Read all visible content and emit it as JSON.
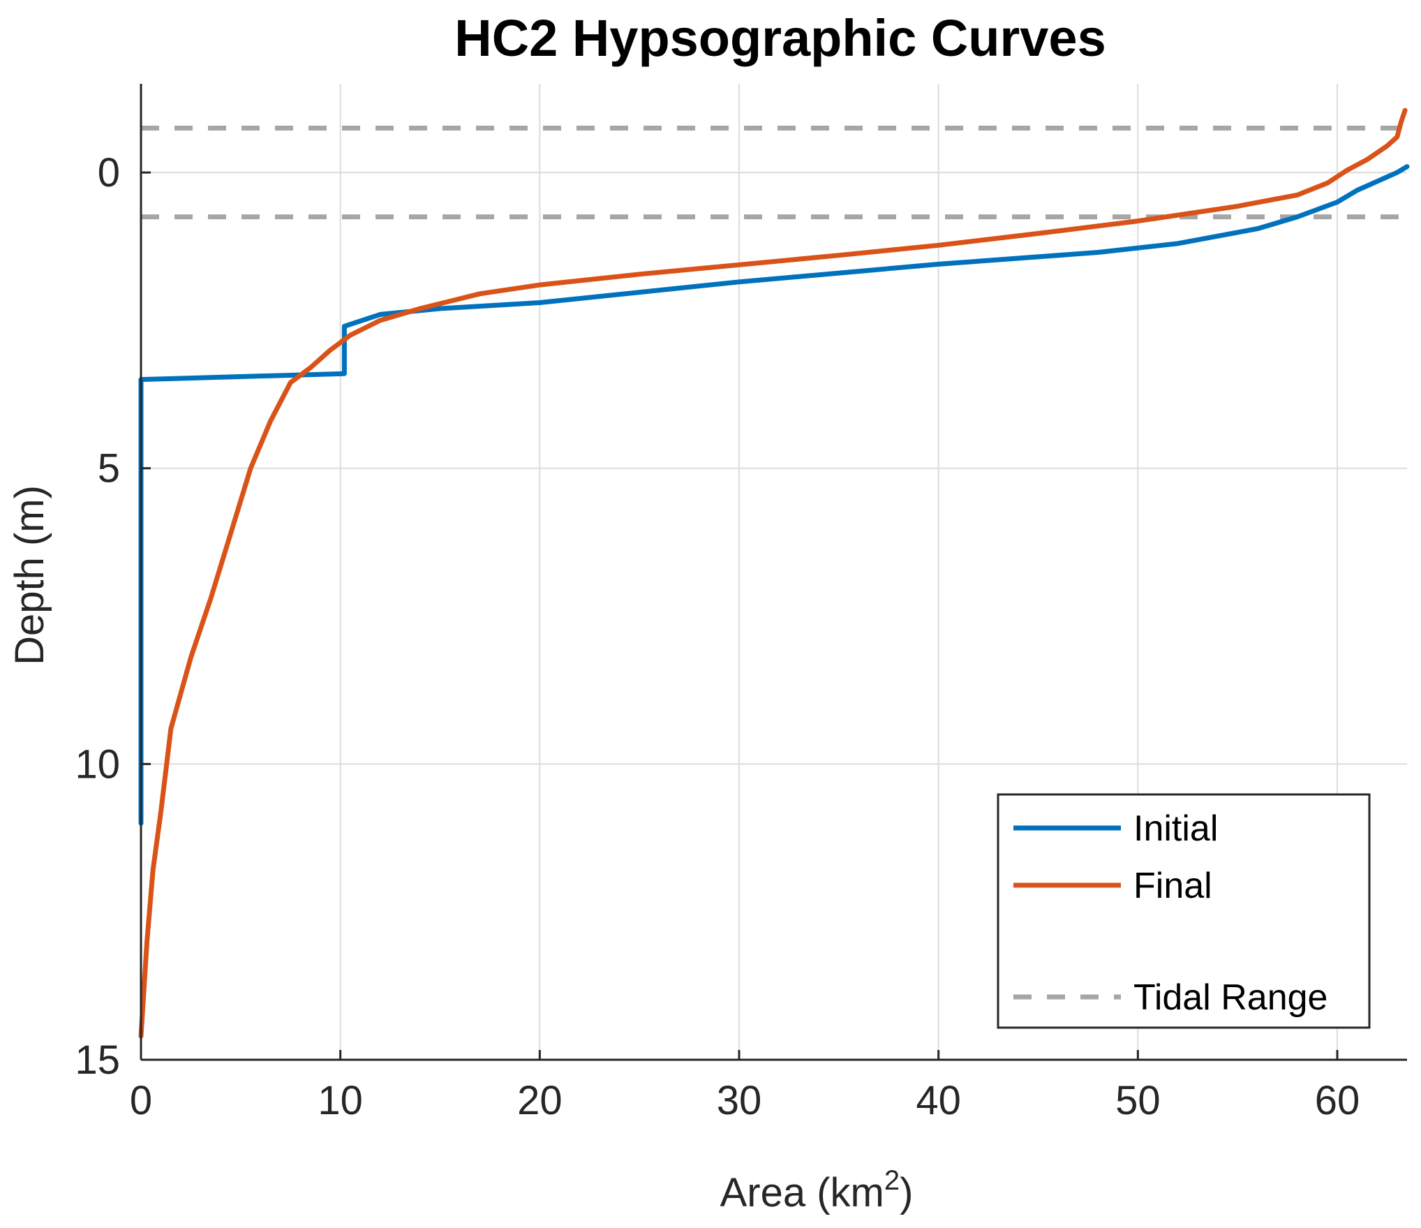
{
  "chart_data": {
    "type": "line",
    "title": "HC2 Hypsographic Curves",
    "xlabel": "Area (km",
    "xlabel_superscript": "2",
    "xlabel_suffix": ")",
    "ylabel": "Depth (m)",
    "xlim": [
      0,
      63.5
    ],
    "ylim": [
      -1.5,
      15
    ],
    "y_reversed": true,
    "grid": true,
    "xticks": [
      0,
      10,
      20,
      30,
      40,
      50,
      60
    ],
    "xtick_labels": [
      "0",
      "10",
      "20",
      "30",
      "40",
      "50",
      "60"
    ],
    "yticks": [
      0,
      5,
      10,
      15
    ],
    "ytick_labels": [
      "0",
      "5",
      "10",
      "15"
    ],
    "legend_position": "bottom-right",
    "series": [
      {
        "name": "Initial",
        "color": "#0072BD",
        "style": "solid",
        "x": [
          0,
          0,
          0,
          10.2,
          10.2,
          12,
          15,
          20,
          30,
          40,
          48,
          52,
          56,
          58,
          60,
          61,
          62,
          63,
          63.5
        ],
        "y": [
          11,
          5,
          3.5,
          3.4,
          2.6,
          2.4,
          2.3,
          2.2,
          1.85,
          1.55,
          1.35,
          1.2,
          0.95,
          0.75,
          0.5,
          0.3,
          0.15,
          0,
          -0.1
        ]
      },
      {
        "name": "Final",
        "color": "#D95319",
        "style": "solid",
        "x": [
          0,
          0.3,
          0.6,
          1,
          1.5,
          2.5,
          3.5,
          4.5,
          5.5,
          6.5,
          7.5,
          8.5,
          9.5,
          10.5,
          12,
          14,
          17,
          20,
          25,
          30,
          35,
          40,
          45,
          50,
          55,
          58,
          59.5,
          60.5,
          61.5,
          62.5,
          63,
          63.2,
          63.4
        ],
        "y": [
          14.6,
          13,
          11.8,
          10.8,
          9.4,
          8.2,
          7.2,
          6.1,
          5.0,
          4.2,
          3.55,
          3.3,
          3.0,
          2.75,
          2.5,
          2.3,
          2.05,
          1.9,
          1.72,
          1.56,
          1.4,
          1.23,
          1.03,
          0.82,
          0.57,
          0.38,
          0.18,
          -0.04,
          -0.22,
          -0.45,
          -0.6,
          -0.85,
          -1.05
        ]
      },
      {
        "name": "Tidal Range",
        "color": "#A6A6A6",
        "style": "dashed",
        "levels": [
          -0.75,
          0.75
        ]
      }
    ]
  }
}
